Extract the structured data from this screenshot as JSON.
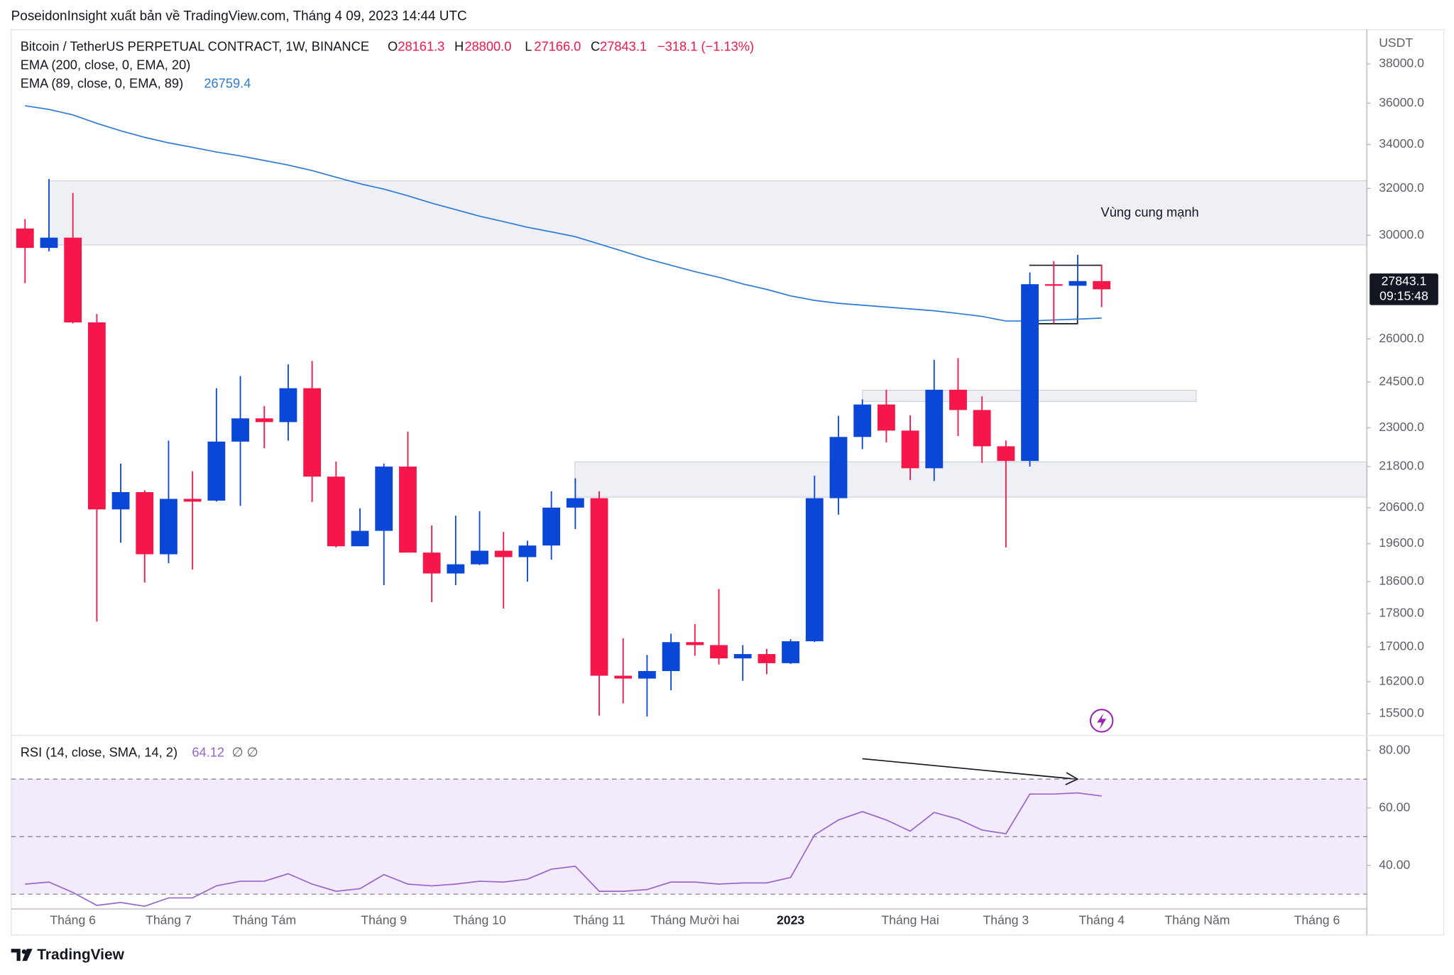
{
  "header": {
    "publisher": "PoseidonInsight xuất bản về TradingView.com, Tháng 4 09, 2023 14:44 UTC"
  },
  "footer": {
    "brand": "TradingView"
  },
  "chart_data": [
    {
      "type": "candlestick",
      "symbol": "Bitcoin / TetherUS PERPETUAL CONTRACT, 1W, BINANCE",
      "ohlc_keys": [
        "O",
        "H",
        "L",
        "C"
      ],
      "last_labels": {
        "open": "28161.3",
        "high": "28800.0",
        "low": "27166.0",
        "close": "27843.1"
      },
      "change": "−318.1 (−1.13%)",
      "countdown": "09:15:48",
      "indicator": "EMA (200, close, 0, EMA, 20)",
      "y_unit": "USDT",
      "log": true,
      "colors": {
        "up": "#0a47d6",
        "down": "#f5164a"
      },
      "open": [
        30280,
        29480,
        29900,
        26600,
        20550,
        21045,
        19315,
        20850,
        20800,
        22565,
        23300,
        23180,
        24290,
        21500,
        19530,
        19950,
        21800,
        19360,
        18810,
        19050,
        19410,
        19240,
        19550,
        20600,
        20870,
        16335,
        16270,
        16440,
        17110,
        17040,
        16730,
        16830,
        16620,
        17130,
        20870,
        22710,
        23750,
        22910,
        21750,
        24240,
        23570,
        22420,
        21970,
        28040,
        27980,
        28161.3
      ],
      "high": [
        30680,
        32420,
        31800,
        26910,
        21890,
        21100,
        22595,
        21660,
        24290,
        24700,
        23700,
        25100,
        25220,
        21950,
        20580,
        21890,
        22880,
        20100,
        20370,
        20500,
        19920,
        19680,
        21070,
        21450,
        21070,
        17200,
        16810,
        17310,
        17540,
        18410,
        17040,
        16950,
        17180,
        21530,
        23380,
        23920,
        24240,
        23400,
        25260,
        25320,
        24020,
        22600,
        28500,
        28950,
        29200,
        28800
      ],
      "low": [
        28080,
        29340,
        26560,
        17600,
        19625,
        18575,
        19080,
        18910,
        20770,
        20650,
        22360,
        22595,
        20760,
        19500,
        19530,
        18510,
        19360,
        18080,
        18510,
        19030,
        17920,
        18600,
        19170,
        20000,
        15460,
        15720,
        15440,
        16010,
        16790,
        16590,
        16220,
        16370,
        16600,
        17110,
        20400,
        22330,
        22540,
        21400,
        21370,
        22740,
        21910,
        19500,
        21800,
        26560,
        26840,
        27166
      ],
      "close": [
        29480,
        29900,
        26600,
        20550,
        21045,
        19315,
        20850,
        20770,
        22565,
        23300,
        23180,
        24290,
        21500,
        19530,
        19950,
        21800,
        19360,
        18810,
        19050,
        19410,
        19240,
        19550,
        20600,
        20870,
        16335,
        16270,
        16440,
        17110,
        17040,
        16730,
        16830,
        16620,
        17130,
        20870,
        22710,
        23750,
        22910,
        21750,
        24240,
        23570,
        22420,
        21970,
        28040,
        27980,
        28161.3,
        27843.1
      ],
      "ema": {
        "name": "EMA (89, close, 0, EMA, 89)",
        "color": "#2d7ad6",
        "values": [
          35870,
          35690,
          35420,
          35010,
          34650,
          34340,
          34080,
          33870,
          33650,
          33470,
          33260,
          33050,
          32800,
          32500,
          32210,
          31970,
          31680,
          31360,
          31080,
          30800,
          30570,
          30330,
          30140,
          29940,
          29640,
          29340,
          29040,
          28780,
          28530,
          28310,
          28050,
          27840,
          27590,
          27420,
          27310,
          27240,
          27170,
          27100,
          27030,
          26930,
          26820,
          26650,
          26650,
          26690,
          26720,
          26759.4
        ]
      },
      "zones": [
        {
          "top": 32340,
          "bottom": 29600
        },
        {
          "top": 24220,
          "bottom": 23850
        },
        {
          "top": 21940,
          "bottom": 20900
        }
      ],
      "annotation": "Vùng cung mạnh",
      "ylim": [
        15060,
        39840
      ],
      "yticks": [
        {
          "value": 38000,
          "label": "38000.0"
        },
        {
          "value": 36000,
          "label": "36000.0"
        },
        {
          "value": 34000,
          "label": "34000.0"
        },
        {
          "value": 32000,
          "label": "32000.0"
        },
        {
          "value": 30000,
          "label": "30000.0"
        },
        {
          "value": 26000,
          "label": "26000.0"
        },
        {
          "value": 24500,
          "label": "24500.0"
        },
        {
          "value": 23000,
          "label": "23000.0"
        },
        {
          "value": 21800,
          "label": "21800.0"
        },
        {
          "value": 20600,
          "label": "20600.0"
        },
        {
          "value": 19600,
          "label": "19600.0"
        },
        {
          "value": 18600,
          "label": "18600.0"
        },
        {
          "value": 17800,
          "label": "17800.0"
        },
        {
          "value": 17000,
          "label": "17000.0"
        },
        {
          "value": 16200,
          "label": "16200.0"
        },
        {
          "value": 15500,
          "label": "15500.0"
        }
      ],
      "x_labels": [
        {
          "index": 2,
          "label": "Tháng 6"
        },
        {
          "index": 6,
          "label": "Tháng 7"
        },
        {
          "index": 10,
          "label": "Tháng Tám"
        },
        {
          "index": 15,
          "label": "Tháng 9"
        },
        {
          "index": 19,
          "label": "Tháng 10"
        },
        {
          "index": 24,
          "label": "Tháng 11"
        },
        {
          "index": 28,
          "label": "Tháng Mười hai"
        },
        {
          "index": 32,
          "label": "2023",
          "bold": true
        },
        {
          "index": 37,
          "label": "Tháng Hai"
        },
        {
          "index": 41,
          "label": "Tháng 3"
        },
        {
          "index": 45,
          "label": "Tháng 4"
        },
        {
          "index": 49,
          "label": "Tháng Năm"
        },
        {
          "index": 54,
          "label": "Tháng 6"
        }
      ]
    },
    {
      "type": "line",
      "name": "RSI (14, close, SMA, 14, 2)",
      "extras": "∅ ∅",
      "color": "#9467c9",
      "band_color": "#f3eafb",
      "values": [
        33.5,
        34.2,
        30.6,
        26.1,
        27.1,
        25.8,
        28.7,
        28.7,
        32.9,
        34.5,
        34.5,
        37.1,
        33.5,
        31.0,
        31.9,
        36.8,
        33.5,
        32.9,
        33.5,
        34.5,
        34.2,
        35.2,
        38.7,
        39.7,
        31.0,
        31.0,
        31.6,
        34.2,
        34.2,
        33.5,
        33.9,
        33.9,
        35.8,
        50.6,
        55.8,
        58.7,
        55.8,
        51.9,
        58.4,
        56.1,
        52.3,
        51.0,
        64.8,
        64.8,
        65.2,
        64.12
      ],
      "levels": [
        70,
        50,
        30
      ],
      "ylim": [
        25.5,
        84.5
      ],
      "yticks": [
        {
          "value": 80,
          "label": "80.00"
        },
        {
          "value": 60,
          "label": "60.00"
        },
        {
          "value": 40,
          "label": "40.00"
        }
      ]
    }
  ]
}
